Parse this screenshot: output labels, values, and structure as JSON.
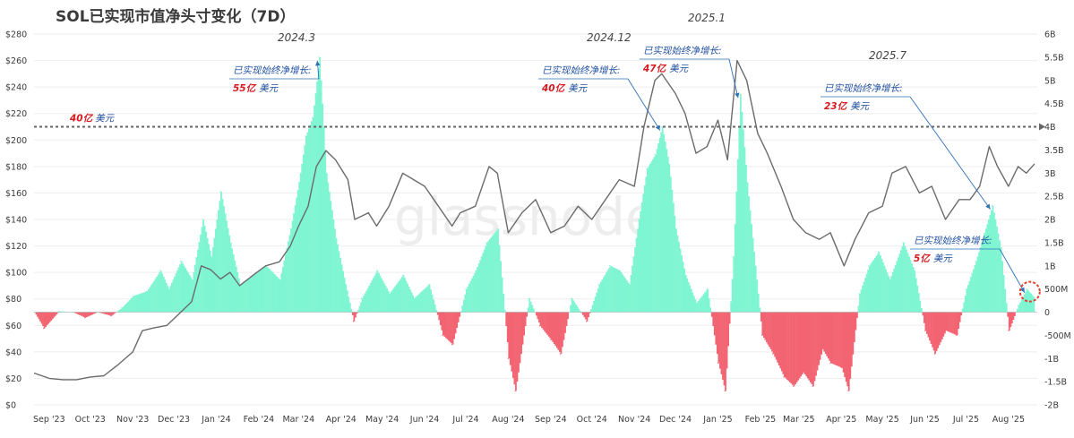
{
  "chart_data": {
    "type": "bar",
    "title": "SOL已实现市值净头寸变化（7D）",
    "watermark": "glassnode",
    "x_tick_labels": [
      "Sep '23",
      "Oct '23",
      "Nov '23",
      "Dec '23",
      "Jan '24",
      "Feb '24",
      "Mar '24",
      "Apr '24",
      "May '24",
      "Jun '24",
      "Jul '24",
      "Aug '24",
      "Sep '24",
      "Oct '24",
      "Nov '24",
      "Dec '24",
      "Jan '25",
      "Feb '25",
      "Mar '25",
      "Apr '25",
      "May '25",
      "Jun '25",
      "Jul '25",
      "Aug '25"
    ],
    "x_range": [
      "2023-08-25",
      "2025-08-26"
    ],
    "left_axis": {
      "labels": [
        "$0",
        "$20",
        "$40",
        "$60",
        "$80",
        "$100",
        "$120",
        "$140",
        "$160",
        "$180",
        "$200",
        "$220",
        "$240",
        "$260",
        "$280"
      ],
      "min": 0,
      "max": 280
    },
    "right_axis": {
      "labels": [
        "-2B",
        "-1.5B",
        "-1B",
        "-500M",
        "0",
        "500M",
        "1B",
        "1.5B",
        "2B",
        "2.5B",
        "3B",
        "3.5B",
        "4B",
        "4.5B",
        "5B",
        "5.5B",
        "6B"
      ],
      "min": -2,
      "max": 6,
      "unit": "B"
    },
    "colors": {
      "positive": "#7ff5d2",
      "negative": "#f36472",
      "price_line": "#6b6b6b",
      "reference_line": "#666666",
      "annotation_text": "#1f4e9e",
      "annotation_value": "#d71920",
      "arrow": "#2e70b8",
      "highlight_circle": "#e0402e"
    },
    "reference_line": {
      "value": 4.0,
      "label_value": "40亿",
      "label_unit": "美元"
    },
    "bar_series": [
      {
        "date": "2023-08-25",
        "value": 0.0
      },
      {
        "date": "2023-09-01",
        "value": -0.35
      },
      {
        "date": "2023-09-12",
        "value": 0.02
      },
      {
        "date": "2023-09-22",
        "value": 0.0
      },
      {
        "date": "2023-10-01",
        "value": -0.12
      },
      {
        "date": "2023-10-10",
        "value": 0.0
      },
      {
        "date": "2023-10-20",
        "value": -0.08
      },
      {
        "date": "2023-10-28",
        "value": 0.1
      },
      {
        "date": "2023-11-05",
        "value": 0.35
      },
      {
        "date": "2023-11-15",
        "value": 0.45
      },
      {
        "date": "2023-11-25",
        "value": 0.9
      },
      {
        "date": "2023-12-01",
        "value": 0.5
      },
      {
        "date": "2023-12-10",
        "value": 1.1
      },
      {
        "date": "2023-12-18",
        "value": 0.7
      },
      {
        "date": "2023-12-26",
        "value": 2.0
      },
      {
        "date": "2024-01-01",
        "value": 1.2
      },
      {
        "date": "2024-01-08",
        "value": 2.6
      },
      {
        "date": "2024-01-15",
        "value": 1.5
      },
      {
        "date": "2024-01-22",
        "value": 0.6
      },
      {
        "date": "2024-02-01",
        "value": 0.8
      },
      {
        "date": "2024-02-10",
        "value": 1.0
      },
      {
        "date": "2024-02-20",
        "value": 0.7
      },
      {
        "date": "2024-02-28",
        "value": 1.8
      },
      {
        "date": "2024-03-05",
        "value": 2.8
      },
      {
        "date": "2024-03-10",
        "value": 3.8
      },
      {
        "date": "2024-03-15",
        "value": 4.2
      },
      {
        "date": "2024-03-20",
        "value": 5.5
      },
      {
        "date": "2024-03-25",
        "value": 3.0
      },
      {
        "date": "2024-04-01",
        "value": 1.6
      },
      {
        "date": "2024-04-08",
        "value": 0.6
      },
      {
        "date": "2024-04-14",
        "value": -0.2
      },
      {
        "date": "2024-04-20",
        "value": 0.3
      },
      {
        "date": "2024-05-01",
        "value": 0.9
      },
      {
        "date": "2024-05-10",
        "value": 0.4
      },
      {
        "date": "2024-05-20",
        "value": 0.8
      },
      {
        "date": "2024-05-28",
        "value": 0.3
      },
      {
        "date": "2024-06-08",
        "value": 0.6
      },
      {
        "date": "2024-06-18",
        "value": -0.5
      },
      {
        "date": "2024-06-25",
        "value": -0.7
      },
      {
        "date": "2024-07-05",
        "value": 0.5
      },
      {
        "date": "2024-07-12",
        "value": 0.9
      },
      {
        "date": "2024-07-20",
        "value": 1.5
      },
      {
        "date": "2024-07-28",
        "value": 1.8
      },
      {
        "date": "2024-08-05",
        "value": -1.0
      },
      {
        "date": "2024-08-10",
        "value": -1.7
      },
      {
        "date": "2024-08-20",
        "value": 0.3
      },
      {
        "date": "2024-08-28",
        "value": -0.3
      },
      {
        "date": "2024-09-05",
        "value": -0.6
      },
      {
        "date": "2024-09-12",
        "value": -0.9
      },
      {
        "date": "2024-09-20",
        "value": 0.3
      },
      {
        "date": "2024-10-01",
        "value": -0.2
      },
      {
        "date": "2024-10-10",
        "value": 0.6
      },
      {
        "date": "2024-10-18",
        "value": 1.0
      },
      {
        "date": "2024-10-25",
        "value": 0.9
      },
      {
        "date": "2024-11-01",
        "value": 0.6
      },
      {
        "date": "2024-11-08",
        "value": 2.0
      },
      {
        "date": "2024-11-14",
        "value": 3.1
      },
      {
        "date": "2024-11-20",
        "value": 3.4
      },
      {
        "date": "2024-11-25",
        "value": 4.0
      },
      {
        "date": "2024-11-30",
        "value": 3.2
      },
      {
        "date": "2024-12-05",
        "value": 1.8
      },
      {
        "date": "2024-12-12",
        "value": 0.8
      },
      {
        "date": "2024-12-20",
        "value": 0.2
      },
      {
        "date": "2024-12-28",
        "value": 0.5
      },
      {
        "date": "2025-01-05",
        "value": -1.1
      },
      {
        "date": "2025-01-10",
        "value": -1.7
      },
      {
        "date": "2025-01-16",
        "value": 1.2
      },
      {
        "date": "2025-01-21",
        "value": 4.7
      },
      {
        "date": "2025-01-26",
        "value": 2.8
      },
      {
        "date": "2025-02-01",
        "value": 1.0
      },
      {
        "date": "2025-02-06",
        "value": -0.5
      },
      {
        "date": "2025-02-14",
        "value": -0.9
      },
      {
        "date": "2025-02-22",
        "value": -1.4
      },
      {
        "date": "2025-03-01",
        "value": -1.6
      },
      {
        "date": "2025-03-08",
        "value": -1.3
      },
      {
        "date": "2025-03-15",
        "value": -1.6
      },
      {
        "date": "2025-03-22",
        "value": -0.8
      },
      {
        "date": "2025-03-28",
        "value": -1.1
      },
      {
        "date": "2025-04-05",
        "value": -1.2
      },
      {
        "date": "2025-04-10",
        "value": -1.7
      },
      {
        "date": "2025-04-18",
        "value": 0.4
      },
      {
        "date": "2025-04-25",
        "value": 1.0
      },
      {
        "date": "2025-05-02",
        "value": 1.3
      },
      {
        "date": "2025-05-10",
        "value": 0.7
      },
      {
        "date": "2025-05-20",
        "value": 1.5
      },
      {
        "date": "2025-05-28",
        "value": 0.9
      },
      {
        "date": "2025-06-05",
        "value": -0.4
      },
      {
        "date": "2025-06-12",
        "value": -0.9
      },
      {
        "date": "2025-06-20",
        "value": -0.4
      },
      {
        "date": "2025-06-28",
        "value": -0.5
      },
      {
        "date": "2025-07-05",
        "value": 0.5
      },
      {
        "date": "2025-07-12",
        "value": 1.1
      },
      {
        "date": "2025-07-18",
        "value": 1.7
      },
      {
        "date": "2025-07-24",
        "value": 2.3
      },
      {
        "date": "2025-07-30",
        "value": 1.4
      },
      {
        "date": "2025-08-05",
        "value": -0.4
      },
      {
        "date": "2025-08-12",
        "value": 0.15
      },
      {
        "date": "2025-08-18",
        "value": 0.5
      },
      {
        "date": "2025-08-24",
        "value": 0.3
      }
    ],
    "price_series": [
      {
        "date": "2023-08-25",
        "value": 24
      },
      {
        "date": "2023-09-05",
        "value": 20
      },
      {
        "date": "2023-09-15",
        "value": 19
      },
      {
        "date": "2023-09-25",
        "value": 19
      },
      {
        "date": "2023-10-05",
        "value": 21
      },
      {
        "date": "2023-10-15",
        "value": 22
      },
      {
        "date": "2023-10-25",
        "value": 30
      },
      {
        "date": "2023-11-05",
        "value": 40
      },
      {
        "date": "2023-11-12",
        "value": 56
      },
      {
        "date": "2023-11-20",
        "value": 58
      },
      {
        "date": "2023-11-30",
        "value": 60
      },
      {
        "date": "2023-12-08",
        "value": 68
      },
      {
        "date": "2023-12-18",
        "value": 78
      },
      {
        "date": "2023-12-25",
        "value": 105
      },
      {
        "date": "2024-01-01",
        "value": 102
      },
      {
        "date": "2024-01-08",
        "value": 95
      },
      {
        "date": "2024-01-15",
        "value": 100
      },
      {
        "date": "2024-01-22",
        "value": 90
      },
      {
        "date": "2024-02-01",
        "value": 98
      },
      {
        "date": "2024-02-10",
        "value": 105
      },
      {
        "date": "2024-02-20",
        "value": 108
      },
      {
        "date": "2024-02-28",
        "value": 120
      },
      {
        "date": "2024-03-05",
        "value": 135
      },
      {
        "date": "2024-03-12",
        "value": 150
      },
      {
        "date": "2024-03-18",
        "value": 180
      },
      {
        "date": "2024-03-25",
        "value": 192
      },
      {
        "date": "2024-04-01",
        "value": 185
      },
      {
        "date": "2024-04-10",
        "value": 170
      },
      {
        "date": "2024-04-15",
        "value": 140
      },
      {
        "date": "2024-04-25",
        "value": 145
      },
      {
        "date": "2024-05-01",
        "value": 135
      },
      {
        "date": "2024-05-10",
        "value": 150
      },
      {
        "date": "2024-05-20",
        "value": 175
      },
      {
        "date": "2024-05-28",
        "value": 170
      },
      {
        "date": "2024-06-05",
        "value": 165
      },
      {
        "date": "2024-06-15",
        "value": 150
      },
      {
        "date": "2024-06-25",
        "value": 135
      },
      {
        "date": "2024-07-01",
        "value": 145
      },
      {
        "date": "2024-07-12",
        "value": 150
      },
      {
        "date": "2024-07-22",
        "value": 180
      },
      {
        "date": "2024-07-28",
        "value": 175
      },
      {
        "date": "2024-08-05",
        "value": 130
      },
      {
        "date": "2024-08-15",
        "value": 145
      },
      {
        "date": "2024-08-25",
        "value": 155
      },
      {
        "date": "2024-09-05",
        "value": 130
      },
      {
        "date": "2024-09-15",
        "value": 135
      },
      {
        "date": "2024-09-25",
        "value": 150
      },
      {
        "date": "2024-10-05",
        "value": 140
      },
      {
        "date": "2024-10-15",
        "value": 155
      },
      {
        "date": "2024-10-25",
        "value": 170
      },
      {
        "date": "2024-11-05",
        "value": 165
      },
      {
        "date": "2024-11-12",
        "value": 210
      },
      {
        "date": "2024-11-20",
        "value": 245
      },
      {
        "date": "2024-11-25",
        "value": 250
      },
      {
        "date": "2024-12-05",
        "value": 235
      },
      {
        "date": "2024-12-12",
        "value": 220
      },
      {
        "date": "2024-12-20",
        "value": 190
      },
      {
        "date": "2024-12-28",
        "value": 195
      },
      {
        "date": "2025-01-05",
        "value": 215
      },
      {
        "date": "2025-01-12",
        "value": 185
      },
      {
        "date": "2025-01-19",
        "value": 260
      },
      {
        "date": "2025-01-26",
        "value": 245
      },
      {
        "date": "2025-02-03",
        "value": 205
      },
      {
        "date": "2025-02-10",
        "value": 190
      },
      {
        "date": "2025-02-20",
        "value": 165
      },
      {
        "date": "2025-03-01",
        "value": 140
      },
      {
        "date": "2025-03-10",
        "value": 130
      },
      {
        "date": "2025-03-20",
        "value": 125
      },
      {
        "date": "2025-03-28",
        "value": 130
      },
      {
        "date": "2025-04-07",
        "value": 105
      },
      {
        "date": "2025-04-15",
        "value": 125
      },
      {
        "date": "2025-04-25",
        "value": 145
      },
      {
        "date": "2025-05-05",
        "value": 150
      },
      {
        "date": "2025-05-12",
        "value": 175
      },
      {
        "date": "2025-05-22",
        "value": 180
      },
      {
        "date": "2025-06-01",
        "value": 160
      },
      {
        "date": "2025-06-10",
        "value": 165
      },
      {
        "date": "2025-06-20",
        "value": 140
      },
      {
        "date": "2025-06-30",
        "value": 155
      },
      {
        "date": "2025-07-08",
        "value": 155
      },
      {
        "date": "2025-07-15",
        "value": 165
      },
      {
        "date": "2025-07-22",
        "value": 195
      },
      {
        "date": "2025-07-28",
        "value": 180
      },
      {
        "date": "2025-08-05",
        "value": 165
      },
      {
        "date": "2025-08-12",
        "value": 180
      },
      {
        "date": "2025-08-18",
        "value": 175
      },
      {
        "date": "2025-08-24",
        "value": 182
      }
    ],
    "annotations": [
      {
        "year": "2024.3",
        "text": "已实现始终净增长:",
        "value": "55亿",
        "unit": "美元",
        "target": {
          "date": "2024-03-20",
          "value": 5.5
        }
      },
      {
        "year": "2024.12",
        "text": "已实现始终净增长:",
        "value": "40亿",
        "unit": "美元",
        "target": {
          "date": "2024-11-25",
          "value": 4.0
        }
      },
      {
        "year": "2025.1",
        "text": "已实现始终净增长:",
        "value": "47亿",
        "unit": "美元",
        "target": {
          "date": "2025-01-21",
          "value": 4.7
        }
      },
      {
        "year": "2025.7",
        "text": "已实现始终净增长:",
        "value": "23亿",
        "unit": "美元",
        "target": {
          "date": "2025-07-24",
          "value": 2.3
        }
      },
      {
        "year": "",
        "text": "已实现始终净增长:",
        "value": "5亿",
        "unit": "美元",
        "target": {
          "date": "2025-08-18",
          "value": 0.5
        }
      }
    ]
  }
}
